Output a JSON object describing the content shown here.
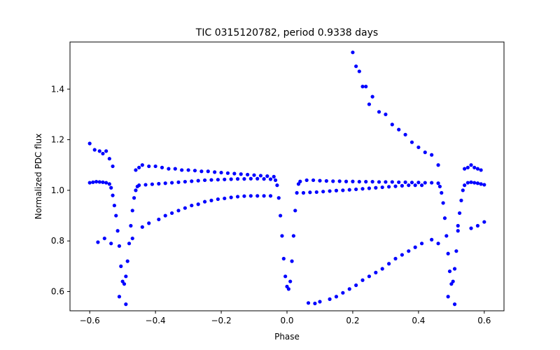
{
  "chart_data": {
    "type": "scatter",
    "title": "TIC 0315120782, period 0.9338 days",
    "xlabel": "Phase",
    "ylabel": "Normalized PDC flux",
    "xlim": [
      -0.66,
      0.66
    ],
    "ylim": [
      0.524,
      1.586
    ],
    "xticks": [
      -0.6,
      -0.4,
      -0.2,
      0.0,
      0.2,
      0.4,
      0.6
    ],
    "xtick_labels": [
      "−0.6",
      "−0.4",
      "−0.2",
      "0.0",
      "0.2",
      "0.4",
      "0.6"
    ],
    "yticks": [
      0.6,
      0.8,
      1.0,
      1.2,
      1.4
    ],
    "ytick_labels": [
      "0.6",
      "0.8",
      "1.0",
      "1.2",
      "1.4"
    ],
    "grid": false,
    "marker_color": "#0000ff",
    "series": [
      {
        "name": "",
        "points": [
          [
            -0.6,
            1.185
          ],
          [
            -0.585,
            1.16
          ],
          [
            -0.57,
            1.155
          ],
          [
            -0.56,
            1.145
          ],
          [
            -0.55,
            1.155
          ],
          [
            -0.54,
            1.125
          ],
          [
            -0.53,
            1.095
          ],
          [
            -0.46,
            1.08
          ],
          [
            -0.45,
            1.09
          ],
          [
            -0.44,
            1.1
          ],
          [
            -0.42,
            1.095
          ],
          [
            -0.4,
            1.095
          ],
          [
            -0.38,
            1.09
          ],
          [
            -0.36,
            1.085
          ],
          [
            -0.34,
            1.085
          ],
          [
            -0.32,
            1.08
          ],
          [
            -0.3,
            1.08
          ],
          [
            -0.28,
            1.078
          ],
          [
            -0.26,
            1.075
          ],
          [
            -0.24,
            1.075
          ],
          [
            -0.22,
            1.072
          ],
          [
            -0.2,
            1.07
          ],
          [
            -0.18,
            1.068
          ],
          [
            -0.16,
            1.066
          ],
          [
            -0.14,
            1.064
          ],
          [
            -0.12,
            1.062
          ],
          [
            -0.1,
            1.06
          ],
          [
            -0.08,
            1.058
          ],
          [
            -0.06,
            1.056
          ],
          [
            -0.04,
            1.054
          ],
          [
            -0.6,
            1.03
          ],
          [
            -0.59,
            1.032
          ],
          [
            -0.58,
            1.034
          ],
          [
            -0.57,
            1.033
          ],
          [
            -0.56,
            1.032
          ],
          [
            -0.55,
            1.03
          ],
          [
            -0.54,
            1.025
          ],
          [
            -0.535,
            1.01
          ],
          [
            -0.53,
            0.98
          ],
          [
            -0.525,
            0.94
          ],
          [
            -0.52,
            0.9
          ],
          [
            -0.515,
            0.84
          ],
          [
            -0.51,
            0.78
          ],
          [
            -0.505,
            0.7
          ],
          [
            -0.5,
            0.64
          ],
          [
            -0.495,
            0.63
          ],
          [
            -0.49,
            0.66
          ],
          [
            -0.485,
            0.72
          ],
          [
            -0.48,
            0.79
          ],
          [
            -0.475,
            0.86
          ],
          [
            -0.47,
            0.92
          ],
          [
            -0.465,
            0.97
          ],
          [
            -0.46,
            1.0
          ],
          [
            -0.455,
            1.015
          ],
          [
            -0.45,
            1.02
          ],
          [
            -0.43,
            1.022
          ],
          [
            -0.41,
            1.024
          ],
          [
            -0.39,
            1.026
          ],
          [
            -0.37,
            1.028
          ],
          [
            -0.35,
            1.03
          ],
          [
            -0.33,
            1.032
          ],
          [
            -0.31,
            1.034
          ],
          [
            -0.29,
            1.036
          ],
          [
            -0.27,
            1.038
          ],
          [
            -0.25,
            1.04
          ],
          [
            -0.23,
            1.041
          ],
          [
            -0.21,
            1.042
          ],
          [
            -0.19,
            1.043
          ],
          [
            -0.17,
            1.044
          ],
          [
            -0.15,
            1.045
          ],
          [
            -0.13,
            1.045
          ],
          [
            -0.11,
            1.046
          ],
          [
            -0.09,
            1.046
          ],
          [
            -0.07,
            1.045
          ],
          [
            -0.05,
            1.044
          ],
          [
            -0.035,
            1.04
          ],
          [
            -0.03,
            1.02
          ],
          [
            -0.025,
            0.97
          ],
          [
            -0.02,
            0.9
          ],
          [
            -0.015,
            0.82
          ],
          [
            -0.01,
            0.73
          ],
          [
            -0.005,
            0.66
          ],
          [
            0.0,
            0.62
          ],
          [
            0.005,
            0.61
          ],
          [
            0.01,
            0.64
          ],
          [
            0.015,
            0.72
          ],
          [
            0.02,
            0.82
          ],
          [
            0.025,
            0.92
          ],
          [
            0.03,
            0.99
          ],
          [
            0.035,
            1.025
          ],
          [
            0.04,
            1.035
          ],
          [
            0.06,
            1.04
          ],
          [
            0.08,
            1.04
          ],
          [
            0.1,
            1.038
          ],
          [
            0.12,
            1.037
          ],
          [
            0.14,
            1.036
          ],
          [
            0.16,
            1.036
          ],
          [
            0.18,
            1.035
          ],
          [
            0.2,
            1.035
          ],
          [
            0.22,
            1.034
          ],
          [
            0.24,
            1.034
          ],
          [
            0.26,
            1.034
          ],
          [
            0.28,
            1.033
          ],
          [
            0.3,
            1.033
          ],
          [
            0.32,
            1.033
          ],
          [
            0.34,
            1.032
          ],
          [
            0.36,
            1.032
          ],
          [
            0.38,
            1.031
          ],
          [
            0.4,
            1.031
          ],
          [
            0.42,
            1.03
          ],
          [
            0.44,
            1.03
          ],
          [
            0.46,
            1.028
          ],
          [
            0.465,
            1.015
          ],
          [
            0.47,
            0.99
          ],
          [
            0.475,
            0.95
          ],
          [
            0.48,
            0.89
          ],
          [
            0.485,
            0.82
          ],
          [
            0.49,
            0.75
          ],
          [
            0.495,
            0.68
          ],
          [
            0.5,
            0.63
          ],
          [
            0.505,
            0.64
          ],
          [
            0.51,
            0.69
          ],
          [
            0.515,
            0.76
          ],
          [
            0.52,
            0.84
          ],
          [
            0.525,
            0.91
          ],
          [
            0.53,
            0.96
          ],
          [
            0.535,
            1.0
          ],
          [
            0.54,
            1.02
          ],
          [
            0.55,
            1.03
          ],
          [
            0.56,
            1.032
          ],
          [
            0.57,
            1.03
          ],
          [
            0.58,
            1.028
          ],
          [
            0.59,
            1.025
          ],
          [
            0.6,
            1.022
          ],
          [
            0.2,
            1.545
          ],
          [
            0.21,
            1.49
          ],
          [
            0.22,
            1.47
          ],
          [
            0.23,
            1.41
          ],
          [
            0.24,
            1.41
          ],
          [
            0.25,
            1.34
          ],
          [
            0.26,
            1.37
          ],
          [
            0.28,
            1.31
          ],
          [
            0.3,
            1.3
          ],
          [
            0.32,
            1.26
          ],
          [
            0.34,
            1.24
          ],
          [
            0.36,
            1.22
          ],
          [
            0.38,
            1.19
          ],
          [
            0.4,
            1.17
          ],
          [
            0.42,
            1.15
          ],
          [
            0.44,
            1.14
          ],
          [
            0.46,
            1.1
          ],
          [
            0.54,
            1.085
          ],
          [
            0.55,
            1.09
          ],
          [
            0.56,
            1.1
          ],
          [
            0.57,
            1.09
          ],
          [
            0.58,
            1.085
          ],
          [
            0.59,
            1.08
          ],
          [
            -0.575,
            0.795
          ],
          [
            -0.555,
            0.81
          ],
          [
            -0.535,
            0.79
          ],
          [
            -0.51,
            0.58
          ],
          [
            -0.49,
            0.55
          ],
          [
            -0.47,
            0.81
          ],
          [
            -0.44,
            0.855
          ],
          [
            -0.42,
            0.87
          ],
          [
            -0.39,
            0.885
          ],
          [
            -0.37,
            0.9
          ],
          [
            -0.35,
            0.91
          ],
          [
            -0.33,
            0.92
          ],
          [
            -0.31,
            0.93
          ],
          [
            -0.29,
            0.94
          ],
          [
            -0.27,
            0.945
          ],
          [
            -0.25,
            0.955
          ],
          [
            -0.23,
            0.96
          ],
          [
            -0.21,
            0.965
          ],
          [
            -0.19,
            0.968
          ],
          [
            -0.17,
            0.972
          ],
          [
            -0.15,
            0.975
          ],
          [
            -0.13,
            0.977
          ],
          [
            -0.11,
            0.978
          ],
          [
            -0.09,
            0.978
          ],
          [
            -0.07,
            0.978
          ],
          [
            -0.05,
            0.978
          ],
          [
            0.05,
            0.99
          ],
          [
            0.07,
            0.992
          ],
          [
            0.09,
            0.993
          ],
          [
            0.11,
            0.995
          ],
          [
            0.13,
            0.997
          ],
          [
            0.15,
            0.999
          ],
          [
            0.17,
            1.0
          ],
          [
            0.19,
            1.002
          ],
          [
            0.21,
            1.004
          ],
          [
            0.23,
            1.006
          ],
          [
            0.25,
            1.008
          ],
          [
            0.27,
            1.01
          ],
          [
            0.29,
            1.012
          ],
          [
            0.31,
            1.014
          ],
          [
            0.33,
            1.016
          ],
          [
            0.35,
            1.018
          ],
          [
            0.37,
            1.02
          ],
          [
            0.39,
            1.02
          ],
          [
            0.41,
            1.02
          ],
          [
            0.065,
            0.555
          ],
          [
            0.085,
            0.553
          ],
          [
            0.1,
            0.56
          ],
          [
            0.13,
            0.57
          ],
          [
            0.15,
            0.58
          ],
          [
            0.17,
            0.595
          ],
          [
            0.19,
            0.61
          ],
          [
            0.21,
            0.625
          ],
          [
            0.23,
            0.645
          ],
          [
            0.25,
            0.66
          ],
          [
            0.27,
            0.675
          ],
          [
            0.29,
            0.69
          ],
          [
            0.31,
            0.71
          ],
          [
            0.33,
            0.73
          ],
          [
            0.35,
            0.745
          ],
          [
            0.37,
            0.76
          ],
          [
            0.39,
            0.775
          ],
          [
            0.41,
            0.79
          ],
          [
            0.44,
            0.805
          ],
          [
            0.46,
            0.79
          ],
          [
            0.49,
            0.58
          ],
          [
            0.51,
            0.55
          ],
          [
            0.52,
            0.86
          ],
          [
            0.56,
            0.85
          ],
          [
            0.58,
            0.86
          ],
          [
            0.6,
            0.875
          ]
        ]
      }
    ]
  }
}
